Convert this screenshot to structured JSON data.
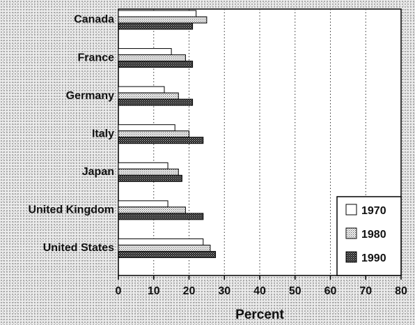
{
  "chart_data": {
    "type": "bar",
    "orientation": "horizontal",
    "categories": [
      "Canada",
      "France",
      "Germany",
      "Italy",
      "Japan",
      "United Kingdom",
      "United States"
    ],
    "series": [
      {
        "name": "1970",
        "values": [
          22,
          15,
          13,
          16,
          14,
          14,
          24
        ]
      },
      {
        "name": "1980",
        "values": [
          25,
          19,
          17,
          20,
          17,
          19,
          26
        ]
      },
      {
        "name": "1990",
        "values": [
          21,
          21,
          21,
          24,
          18,
          24,
          27.5
        ]
      }
    ],
    "xlabel": "Percent",
    "ylabel": "",
    "title": "",
    "xlim": [
      0,
      80
    ],
    "xticks": [
      0,
      10,
      20,
      30,
      40,
      50,
      60,
      70,
      80
    ],
    "grid": "vertical dotted",
    "legend_position": "bottom-right",
    "colors": {
      "bar_1970": "#ffffff",
      "bar_1980": "#bdbdbd",
      "bar_1990": "#3a3a3a",
      "axis": "#000000"
    }
  }
}
